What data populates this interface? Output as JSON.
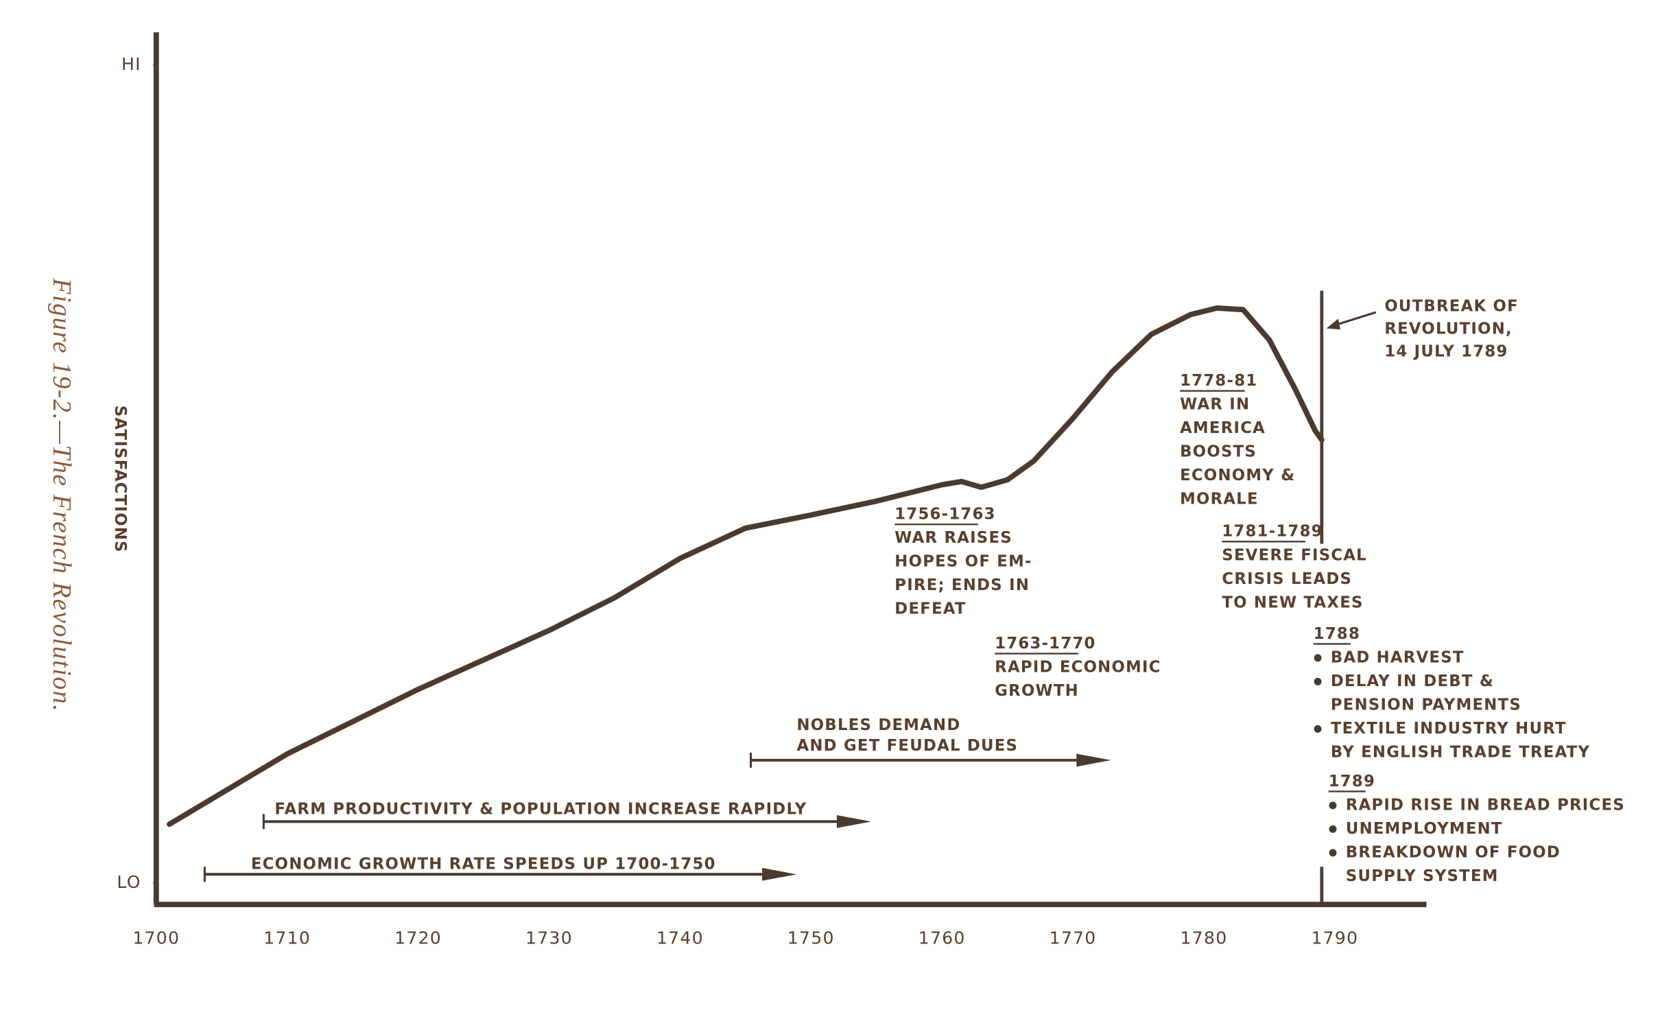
{
  "chart_data": {
    "type": "line",
    "caption": "Figure 19-2.—The French Revolution.",
    "ylabel": "SATISFACTIONS",
    "xlim": [
      1700,
      1797
    ],
    "xticks": [
      1700,
      1710,
      1720,
      1730,
      1740,
      1750,
      1760,
      1770,
      1780,
      1790
    ],
    "ylim": [
      -2.6,
      104
    ],
    "yticks": [
      {
        "value": 0,
        "label": "LO"
      },
      {
        "value": 100,
        "label": "HI"
      }
    ],
    "color": "#4a3a30",
    "x": [
      1701,
      1710,
      1720,
      1730,
      1735,
      1740,
      1745,
      1750,
      1755,
      1760,
      1761.5,
      1763,
      1765,
      1767,
      1770,
      1773,
      1776,
      1779,
      1781,
      1783,
      1785,
      1787,
      1788.5,
      1789
    ],
    "series": [
      {
        "values": [
          7.2,
          15.8,
          23.7,
          30.9,
          34.9,
          39.7,
          43.4,
          45,
          46.7,
          48.7,
          49.1,
          48.4,
          49.3,
          51.6,
          56.8,
          62.5,
          67.1,
          69.5,
          70.3,
          70.1,
          66.4,
          60.3,
          55.3,
          54.2
        ]
      }
    ],
    "revolution": {
      "x": 1789,
      "lines": [
        "OUTBREAK OF",
        "REVOLUTION,",
        "14 JULY 1789"
      ]
    },
    "spans": [
      {
        "label": [
          "ECONOMIC GROWTH RATE SPEEDS UP 1700-1750"
        ],
        "start": 1703.7,
        "end": 1748.9
      },
      {
        "label": [
          "FARM PRODUCTIVITY & POPULATION INCREASE RAPIDLY"
        ],
        "start": 1708.2,
        "end": 1754.6
      },
      {
        "label": [
          "NOBLES DEMAND",
          "AND GET FEUDAL DUES"
        ],
        "start": 1745.4,
        "end": 1772.9
      }
    ],
    "annotations": [
      {
        "date": "1756-1763",
        "lines": [
          "WAR RAISES",
          "HOPES OF EM-",
          "PIRE; ENDS IN",
          "DEFEAT"
        ]
      },
      {
        "date": "1763-1770",
        "lines": [
          "RAPID ECONOMIC",
          "GROWTH"
        ]
      },
      {
        "date": "1778-81",
        "lines": [
          "WAR IN",
          "AMERICA",
          "BOOSTS",
          "ECONOMY &",
          "MORALE"
        ]
      },
      {
        "date": "1781-1789",
        "lines": [
          "SEVERE FISCAL",
          "CRISIS LEADS",
          "TO NEW TAXES"
        ]
      },
      {
        "date": "1788",
        "items": [
          [
            "BAD HARVEST"
          ],
          [
            "DELAY IN DEBT &",
            "PENSION PAYMENTS"
          ],
          [
            "TEXTILE INDUSTRY HURT",
            "BY ENGLISH TRADE TREATY"
          ]
        ]
      },
      {
        "date": "1789",
        "items": [
          [
            "RAPID RISE IN BREAD PRICES"
          ],
          [
            "UNEMPLOYMENT"
          ],
          [
            "BREAKDOWN OF FOOD",
            "SUPPLY SYSTEM"
          ]
        ]
      }
    ]
  }
}
